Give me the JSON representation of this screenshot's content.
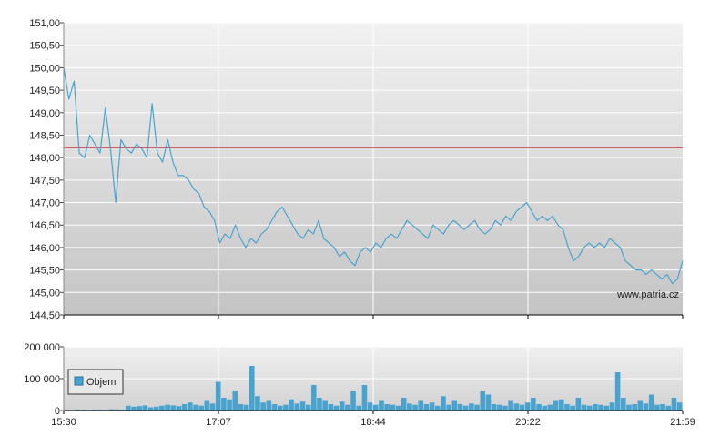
{
  "watermark": "www.patria.cz",
  "chart_data": [
    {
      "type": "line",
      "x_ticks": [
        "15:30",
        "17:07",
        "18:44",
        "20:22",
        "21:59"
      ],
      "y_ticks": [
        "144,50",
        "145,00",
        "145,50",
        "146,00",
        "146,50",
        "147,00",
        "147,50",
        "148,00",
        "148,50",
        "149,00",
        "149,50",
        "150,00",
        "150,50",
        "151,00"
      ],
      "ylim": [
        144.5,
        151.0
      ],
      "grid": true,
      "reference_line": 148.22,
      "colors": {
        "line": "#4aa3cf",
        "reference": "#cc3333"
      },
      "series": [
        {
          "values": [
            150.0,
            149.3,
            149.7,
            148.1,
            148.0,
            148.5,
            148.3,
            148.1,
            149.1,
            148.2,
            147.0,
            148.4,
            148.2,
            148.1,
            148.3,
            148.2,
            148.0,
            149.2,
            148.1,
            147.9,
            148.4,
            147.9,
            147.6,
            147.6,
            147.5,
            147.3,
            147.2,
            146.9,
            146.8,
            146.6,
            146.1,
            146.3,
            146.2,
            146.5,
            146.2,
            146.0,
            146.2,
            146.1,
            146.3,
            146.4,
            146.6,
            146.8,
            146.9,
            146.7,
            146.5,
            146.3,
            146.2,
            146.4,
            146.3,
            146.6,
            146.2,
            146.1,
            146.0,
            145.8,
            145.9,
            145.7,
            145.6,
            145.9,
            146.0,
            145.9,
            146.1,
            146.0,
            146.2,
            146.3,
            146.2,
            146.4,
            146.6,
            146.5,
            146.4,
            146.3,
            146.2,
            146.5,
            146.4,
            146.3,
            146.5,
            146.6,
            146.5,
            146.4,
            146.5,
            146.6,
            146.4,
            146.3,
            146.4,
            146.6,
            146.5,
            146.7,
            146.6,
            146.8,
            146.9,
            147.0,
            146.8,
            146.6,
            146.7,
            146.6,
            146.7,
            146.5,
            146.4,
            146.0,
            145.7,
            145.8,
            146.0,
            146.1,
            146.0,
            146.1,
            146.0,
            146.2,
            146.1,
            146.0,
            145.7,
            145.6,
            145.5,
            145.5,
            145.4,
            145.5,
            145.4,
            145.3,
            145.4,
            145.2,
            145.3,
            145.7
          ]
        }
      ]
    },
    {
      "type": "bar",
      "x_ticks": [
        "15:30",
        "17:07",
        "18:44",
        "20:22",
        "21:59"
      ],
      "y_ticks": [
        "0",
        "100 000",
        "200 000"
      ],
      "ylim": [
        0,
        200000
      ],
      "grid": true,
      "legend": "Objem",
      "legend_position": "left",
      "colors": {
        "bar": "#4aa3cf"
      },
      "values": [
        2000,
        1500,
        3000,
        2500,
        2000,
        3000,
        2500,
        2000,
        4000,
        3500,
        3000,
        15000,
        12000,
        14000,
        16000,
        10000,
        12000,
        15000,
        18000,
        16000,
        14000,
        20000,
        25000,
        18000,
        15000,
        30000,
        22000,
        90000,
        40000,
        35000,
        60000,
        20000,
        18000,
        140000,
        45000,
        25000,
        30000,
        20000,
        15000,
        18000,
        35000,
        22000,
        28000,
        18000,
        80000,
        40000,
        30000,
        20000,
        15000,
        28000,
        18000,
        60000,
        15000,
        80000,
        25000,
        18000,
        30000,
        20000,
        18000,
        15000,
        40000,
        22000,
        18000,
        30000,
        20000,
        25000,
        15000,
        45000,
        18000,
        30000,
        20000,
        15000,
        22000,
        18000,
        60000,
        50000,
        20000,
        18000,
        15000,
        30000,
        22000,
        18000,
        25000,
        40000,
        20000,
        15000,
        18000,
        30000,
        35000,
        20000,
        15000,
        40000,
        18000,
        15000,
        20000,
        18000,
        15000,
        25000,
        120000,
        40000,
        18000,
        20000,
        30000,
        22000,
        50000,
        18000,
        20000,
        15000,
        40000,
        25000
      ]
    }
  ]
}
